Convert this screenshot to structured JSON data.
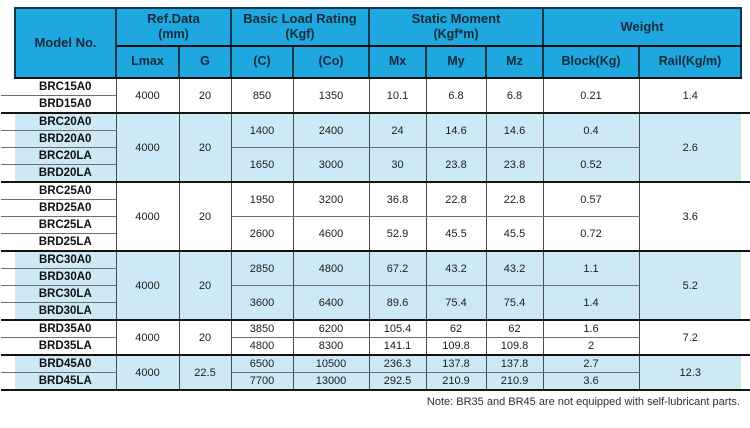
{
  "table": {
    "header": {
      "model_no": "Model No.",
      "ref_data": {
        "line1": "Ref.Data",
        "line2": "(mm)"
      },
      "basic_load": {
        "line1": "Basic Load Rating",
        "line2": "(Kgf)"
      },
      "static_moment": {
        "line1": "Static Moment",
        "line2": "(Kgf*m)"
      },
      "weight": {
        "line1": "Weight"
      },
      "sub": {
        "lmax": "Lmax",
        "g": "G",
        "c": "(C)",
        "co": "(Co)",
        "mx": "Mx",
        "my": "My",
        "mz": "Mz",
        "block": "Block(Kg)",
        "rail": "Rail(Kg/m)"
      }
    },
    "groups": [
      {
        "shade": false,
        "lmax": "4000",
        "g": "20",
        "rail": "1.4",
        "subgroups": [
          {
            "models": [
              "BRC15A0",
              "BRD15A0"
            ],
            "c": "850",
            "co": "1350",
            "mx": "10.1",
            "my": "6.8",
            "mz": "6.8",
            "block": "0.21"
          }
        ]
      },
      {
        "shade": true,
        "lmax": "4000",
        "g": "20",
        "rail": "2.6",
        "subgroups": [
          {
            "models": [
              "BRC20A0",
              "BRD20A0"
            ],
            "c": "1400",
            "co": "2400",
            "mx": "24",
            "my": "14.6",
            "mz": "14.6",
            "block": "0.4"
          },
          {
            "models": [
              "BRC20LA",
              "BRD20LA"
            ],
            "c": "1650",
            "co": "3000",
            "mx": "30",
            "my": "23.8",
            "mz": "23.8",
            "block": "0.52"
          }
        ]
      },
      {
        "shade": false,
        "lmax": "4000",
        "g": "20",
        "rail": "3.6",
        "subgroups": [
          {
            "models": [
              "BRC25A0",
              "BRD25A0"
            ],
            "c": "1950",
            "co": "3200",
            "mx": "36.8",
            "my": "22.8",
            "mz": "22.8",
            "block": "0.57"
          },
          {
            "models": [
              "BRC25LA",
              "BRD25LA"
            ],
            "c": "2600",
            "co": "4600",
            "mx": "52.9",
            "my": "45.5",
            "mz": "45.5",
            "block": "0.72"
          }
        ]
      },
      {
        "shade": true,
        "lmax": "4000",
        "g": "20",
        "rail": "5.2",
        "subgroups": [
          {
            "models": [
              "BRC30A0",
              "BRD30A0"
            ],
            "c": "2850",
            "co": "4800",
            "mx": "67.2",
            "my": "43.2",
            "mz": "43.2",
            "block": "1.1"
          },
          {
            "models": [
              "BRC30LA",
              "BRD30LA"
            ],
            "c": "3600",
            "co": "6400",
            "mx": "89.6",
            "my": "75.4",
            "mz": "75.4",
            "block": "1.4"
          }
        ]
      },
      {
        "shade": false,
        "lmax": "4000",
        "g": "20",
        "rail": "7.2",
        "subgroups": [
          {
            "models": [
              "BRD35A0"
            ],
            "c": "3850",
            "co": "6200",
            "mx": "105.4",
            "my": "62",
            "mz": "62",
            "block": "1.6"
          },
          {
            "models": [
              "BRD35LA"
            ],
            "c": "4800",
            "co": "8300",
            "mx": "141.1",
            "my": "109.8",
            "mz": "109.8",
            "block": "2"
          }
        ]
      },
      {
        "shade": true,
        "lmax": "4000",
        "g": "22.5",
        "rail": "12.3",
        "subgroups": [
          {
            "models": [
              "BRD45A0"
            ],
            "c": "6500",
            "co": "10500",
            "mx": "236.3",
            "my": "137.8",
            "mz": "137.8",
            "block": "2.7"
          },
          {
            "models": [
              "BRD45LA"
            ],
            "c": "7700",
            "co": "13000",
            "mx": "292.5",
            "my": "210.9",
            "mz": "210.9",
            "block": "3.6"
          }
        ]
      }
    ],
    "note": "Note: BR35 and BR45 are not equipped with self-lubricant parts."
  }
}
